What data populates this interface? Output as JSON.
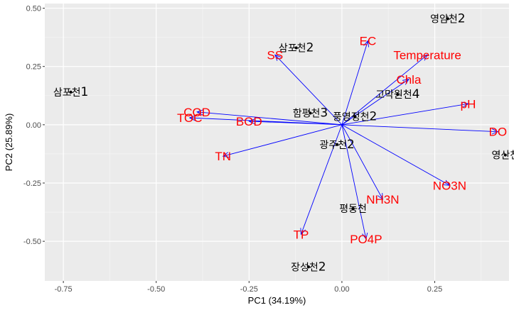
{
  "colors": {
    "panel_bg": "#ebebeb",
    "grid_major": "#ffffff",
    "arrow": "#0000ff",
    "variable_label": "#ff0000",
    "point": "#000000"
  },
  "chart_data": {
    "type": "scatter",
    "subtype": "biplot",
    "title": "",
    "xlabel": "PC1 (34.19%)",
    "ylabel": "PC2 (25.89%)",
    "xlim": [
      -0.8,
      0.45
    ],
    "ylim": [
      -0.67,
      0.52
    ],
    "xticks": [
      -0.75,
      -0.5,
      -0.25,
      0.0,
      0.25
    ],
    "xtick_labels": [
      "-0.75",
      "-0.50",
      "-0.25",
      "0.00",
      "0.25"
    ],
    "yticks": [
      -0.5,
      -0.25,
      0.0,
      0.25,
      0.5
    ],
    "ytick_labels": [
      "-0.50",
      "-0.25",
      "0.00",
      "0.25",
      "0.50"
    ],
    "grid": true,
    "points": [
      {
        "label": "영암천",
        "suffix": "2",
        "x": 0.285,
        "y": 0.455
      },
      {
        "label": "삼포천",
        "suffix": "2",
        "x": -0.123,
        "y": 0.33
      },
      {
        "label": "삼포천",
        "suffix": "1",
        "x": -0.73,
        "y": 0.14
      },
      {
        "label": "고막원천",
        "suffix": "4",
        "x": 0.15,
        "y": 0.13
      },
      {
        "label": "함평천",
        "suffix": "3",
        "x": -0.085,
        "y": 0.05
      },
      {
        "label": "풍영정천",
        "suffix": "2",
        "x": 0.035,
        "y": 0.035
      },
      {
        "label": "광주천",
        "suffix": "2",
        "x": -0.013,
        "y": -0.085
      },
      {
        "label": "영산천",
        "suffix": "",
        "x": 0.44,
        "y": -0.13
      },
      {
        "label": "평동천",
        "suffix": "",
        "x": 0.03,
        "y": -0.36
      },
      {
        "label": "장성천",
        "suffix": "2",
        "x": -0.09,
        "y": -0.61
      }
    ],
    "loadings": [
      {
        "name": "EC",
        "x": 0.07,
        "y": 0.36
      },
      {
        "name": "Temperature",
        "x": 0.23,
        "y": 0.3
      },
      {
        "name": "Chla",
        "x": 0.18,
        "y": 0.195
      },
      {
        "name": "pH",
        "x": 0.34,
        "y": 0.09
      },
      {
        "name": "DO",
        "x": 0.42,
        "y": -0.03
      },
      {
        "name": "NO3N",
        "x": 0.29,
        "y": -0.26
      },
      {
        "name": "NH3N",
        "x": 0.11,
        "y": -0.32
      },
      {
        "name": "PO4P",
        "x": 0.065,
        "y": -0.49
      },
      {
        "name": "TP",
        "x": -0.11,
        "y": -0.47
      },
      {
        "name": "TN",
        "x": -0.32,
        "y": -0.135
      },
      {
        "name": "TOC",
        "x": -0.41,
        "y": 0.03
      },
      {
        "name": "COD",
        "x": -0.39,
        "y": 0.055
      },
      {
        "name": "BOD",
        "x": -0.25,
        "y": 0.015
      },
      {
        "name": "SS",
        "x": -0.18,
        "y": 0.3
      }
    ]
  }
}
